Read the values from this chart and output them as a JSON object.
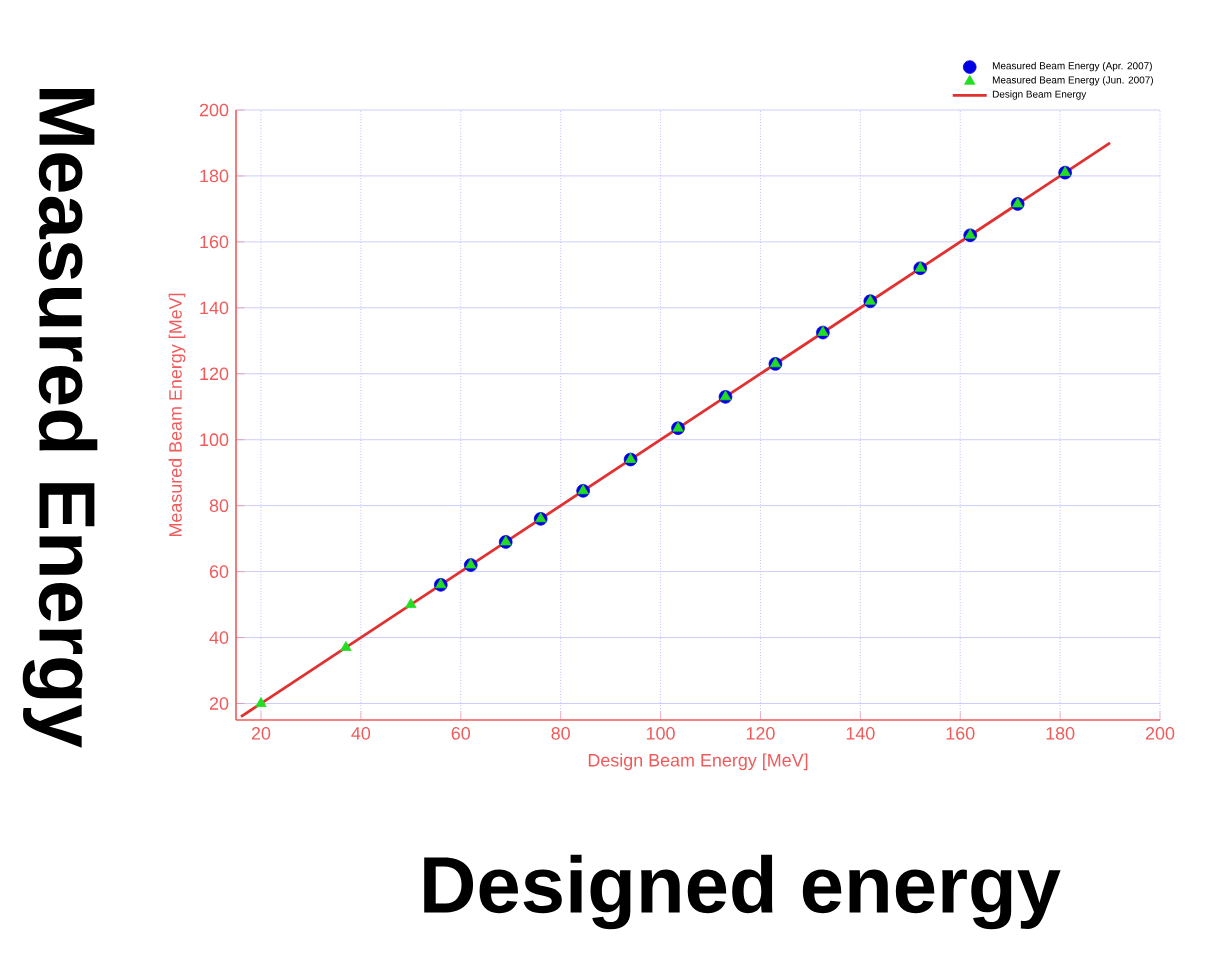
{
  "chart_data": {
    "type": "scatter",
    "xlabel": "Design Beam Energy [MeV]",
    "ylabel": "Measured Beam Energy [MeV]",
    "annotations": [
      "Measured Energy",
      "Designed energy"
    ],
    "xlim": [
      15,
      200
    ],
    "ylim": [
      15,
      200
    ],
    "xticks": [
      20,
      40,
      60,
      80,
      100,
      120,
      140,
      160,
      180,
      200
    ],
    "yticks": [
      20,
      40,
      60,
      80,
      100,
      120,
      140,
      160,
      180,
      200
    ],
    "grid": true,
    "legend": "top right",
    "series": [
      {
        "name": "Measured Beam Energy (Apr. 2007)",
        "color": "#0000e0",
        "marker": "circle",
        "x": [
          56,
          62,
          69,
          76,
          84.5,
          94,
          103.5,
          113,
          123,
          132.5,
          142,
          152,
          162,
          171.5,
          181
        ],
        "values": [
          56,
          62,
          69,
          76,
          84.5,
          94,
          103.5,
          113,
          123,
          132.5,
          142,
          152,
          162,
          171.5,
          181
        ]
      },
      {
        "name": "Measured Beam Energy (Jun. 2007)",
        "color": "#22dd22",
        "marker": "triangle",
        "x": [
          20,
          37,
          50,
          56,
          62,
          69,
          76,
          84.5,
          94,
          103.5,
          113,
          123,
          132.5,
          142,
          152,
          162,
          171.5,
          181
        ],
        "values": [
          20,
          37,
          50,
          56,
          62,
          69,
          76,
          84.5,
          94,
          103.5,
          113,
          123,
          132.5,
          142,
          152,
          162,
          171.5,
          181
        ]
      },
      {
        "name": "Design Beam Energy",
        "type": "line",
        "color": "#e03030",
        "marker": "none",
        "x": [
          16,
          190
        ],
        "values": [
          16,
          190
        ]
      }
    ]
  }
}
